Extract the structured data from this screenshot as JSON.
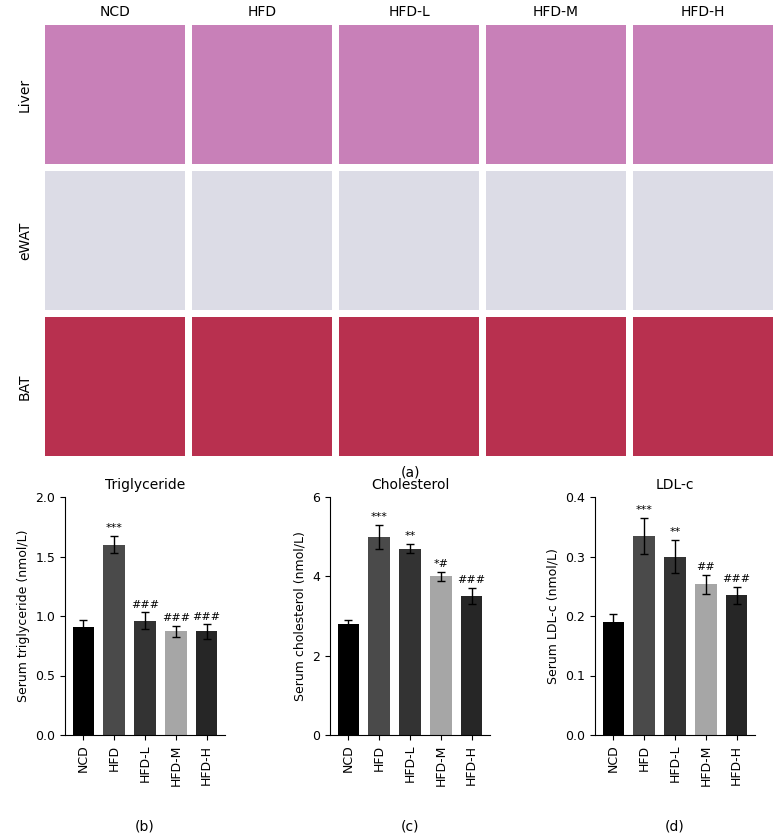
{
  "image_panel": {
    "label": "(a)",
    "columns": [
      "NCD",
      "HFD",
      "HFD-L",
      "HFD-M",
      "HFD-H"
    ],
    "rows": [
      "Liver",
      "eWAT",
      "BAT"
    ]
  },
  "chart_data": [
    {
      "type": "bar",
      "title": "Triglyceride",
      "panel_label": "(b)",
      "y_label": "Serum triglyceride (nmol/L)",
      "categories": [
        "NCD",
        "HFD",
        "HFD-L",
        "HFD-M",
        "HFD-H"
      ],
      "values": [
        0.91,
        1.6,
        0.96,
        0.87,
        0.87
      ],
      "errors": [
        0.06,
        0.07,
        0.07,
        0.05,
        0.06
      ],
      "significance": [
        null,
        "***",
        "###",
        "###",
        "###"
      ],
      "colors": [
        "#000000",
        "#4a4a4a",
        "#333333",
        "#a6a6a6",
        "#262626"
      ],
      "ylim": [
        0,
        2.0
      ],
      "yticks": [
        {
          "value": 0,
          "label": "0.0"
        },
        0.5,
        {
          "value": 1.0,
          "label": "1.0"
        },
        1.5,
        {
          "value": 2.0,
          "label": "2.0"
        }
      ]
    },
    {
      "type": "bar",
      "title": "Cholesterol",
      "panel_label": "(c)",
      "y_label": "Serum cholesterol (nmol/L)",
      "categories": [
        "NCD",
        "HFD",
        "HFD-L",
        "HFD-M",
        "HFD-H"
      ],
      "values": [
        2.8,
        5.0,
        4.7,
        4.0,
        3.5
      ],
      "errors": [
        0.1,
        0.3,
        0.12,
        0.12,
        0.2
      ],
      "significance": [
        null,
        "***",
        "**",
        "*#",
        "###"
      ],
      "colors": [
        "#000000",
        "#4a4a4a",
        "#333333",
        "#a6a6a6",
        "#262626"
      ],
      "ylim": [
        0,
        6
      ],
      "yticks": [
        0,
        2,
        4,
        6
      ]
    },
    {
      "type": "bar",
      "title": "LDL-c",
      "panel_label": "(d)",
      "y_label": "Serum LDL-c (nmol/L)",
      "categories": [
        "NCD",
        "HFD",
        "HFD-L",
        "HFD-M",
        "HFD-H"
      ],
      "values": [
        0.19,
        0.335,
        0.3,
        0.253,
        0.235
      ],
      "errors": [
        0.013,
        0.03,
        0.028,
        0.016,
        0.014
      ],
      "significance": [
        null,
        "***",
        "**",
        "##",
        "###"
      ],
      "colors": [
        "#000000",
        "#4a4a4a",
        "#333333",
        "#a6a6a6",
        "#262626"
      ],
      "ylim": [
        0,
        0.4
      ],
      "yticks": [
        {
          "value": 0,
          "label": "0.0"
        },
        0.1,
        0.2,
        0.3,
        0.4
      ]
    }
  ]
}
